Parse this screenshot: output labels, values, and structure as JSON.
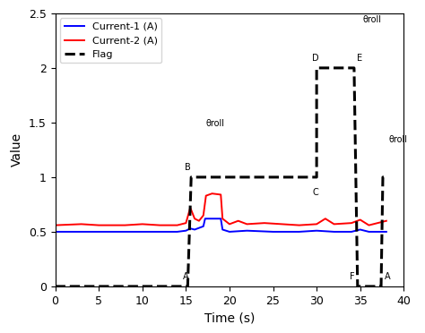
{
  "chart_data": {
    "type": "line",
    "x_label": "Time (s)",
    "y_label": "Value",
    "xlim": [
      0,
      40
    ],
    "xticks": [
      0,
      5,
      10,
      15,
      20,
      25,
      30,
      35,
      40
    ],
    "ylim": [
      0,
      2.5
    ],
    "yticks": [
      0,
      0.5,
      1,
      1.5,
      2,
      2.5
    ],
    "grid": false,
    "legend": "upper left",
    "series": [
      {
        "name": "Current-1 (A)",
        "color": "#0000ff",
        "line_style": "solid",
        "x": [
          0,
          5,
          10,
          14,
          15,
          15.5,
          16,
          17,
          17.2,
          18,
          19,
          19.2,
          20,
          22,
          25,
          28,
          30,
          32,
          34,
          35,
          36,
          37,
          38
        ],
        "values": [
          0.5,
          0.5,
          0.5,
          0.5,
          0.51,
          0.53,
          0.52,
          0.55,
          0.62,
          0.62,
          0.62,
          0.52,
          0.5,
          0.51,
          0.5,
          0.5,
          0.51,
          0.5,
          0.5,
          0.52,
          0.5,
          0.5,
          0.5
        ]
      },
      {
        "name": "Current-2 (A)",
        "color": "#ff0000",
        "line_style": "solid",
        "x": [
          0,
          3,
          5,
          8,
          10,
          12,
          14,
          15,
          15.5,
          16,
          16.5,
          17,
          17.3,
          18,
          19,
          19.2,
          20,
          21,
          22,
          24,
          26,
          28,
          30,
          31,
          32,
          34,
          35,
          36,
          37,
          38
        ],
        "values": [
          0.56,
          0.57,
          0.56,
          0.56,
          0.57,
          0.56,
          0.56,
          0.58,
          0.72,
          0.62,
          0.6,
          0.65,
          0.83,
          0.85,
          0.84,
          0.62,
          0.57,
          0.6,
          0.57,
          0.58,
          0.57,
          0.56,
          0.57,
          0.62,
          0.57,
          0.58,
          0.61,
          0.56,
          0.58,
          0.6
        ]
      },
      {
        "name": "Flag",
        "color": "#000000",
        "line_style": "dashed",
        "x": [
          0,
          15.2,
          15.6,
          30,
          30,
          34.3,
          34.7,
          37.4,
          37.6,
          38
        ],
        "values": [
          0,
          0,
          1,
          1,
          2,
          2,
          0,
          0,
          1,
          1
        ]
      }
    ],
    "annotations": [
      {
        "text": "A",
        "x": 14.6,
        "y": 0.05
      },
      {
        "text": "B",
        "x": 14.9,
        "y": 1.05
      },
      {
        "text": "C",
        "x": 29.5,
        "y": 0.82
      },
      {
        "text": "D",
        "x": 29.5,
        "y": 2.05
      },
      {
        "text": "E",
        "x": 34.6,
        "y": 2.05
      },
      {
        "text": "F",
        "x": 33.8,
        "y": 0.05
      },
      {
        "text": "A",
        "x": 37.8,
        "y": 0.05
      },
      {
        "text": "θroll",
        "x": 17.3,
        "y": 1.45
      },
      {
        "text": "θroll",
        "x": 35.3,
        "y": 2.4
      },
      {
        "text": "θroll",
        "x": 38.3,
        "y": 1.3
      }
    ]
  }
}
